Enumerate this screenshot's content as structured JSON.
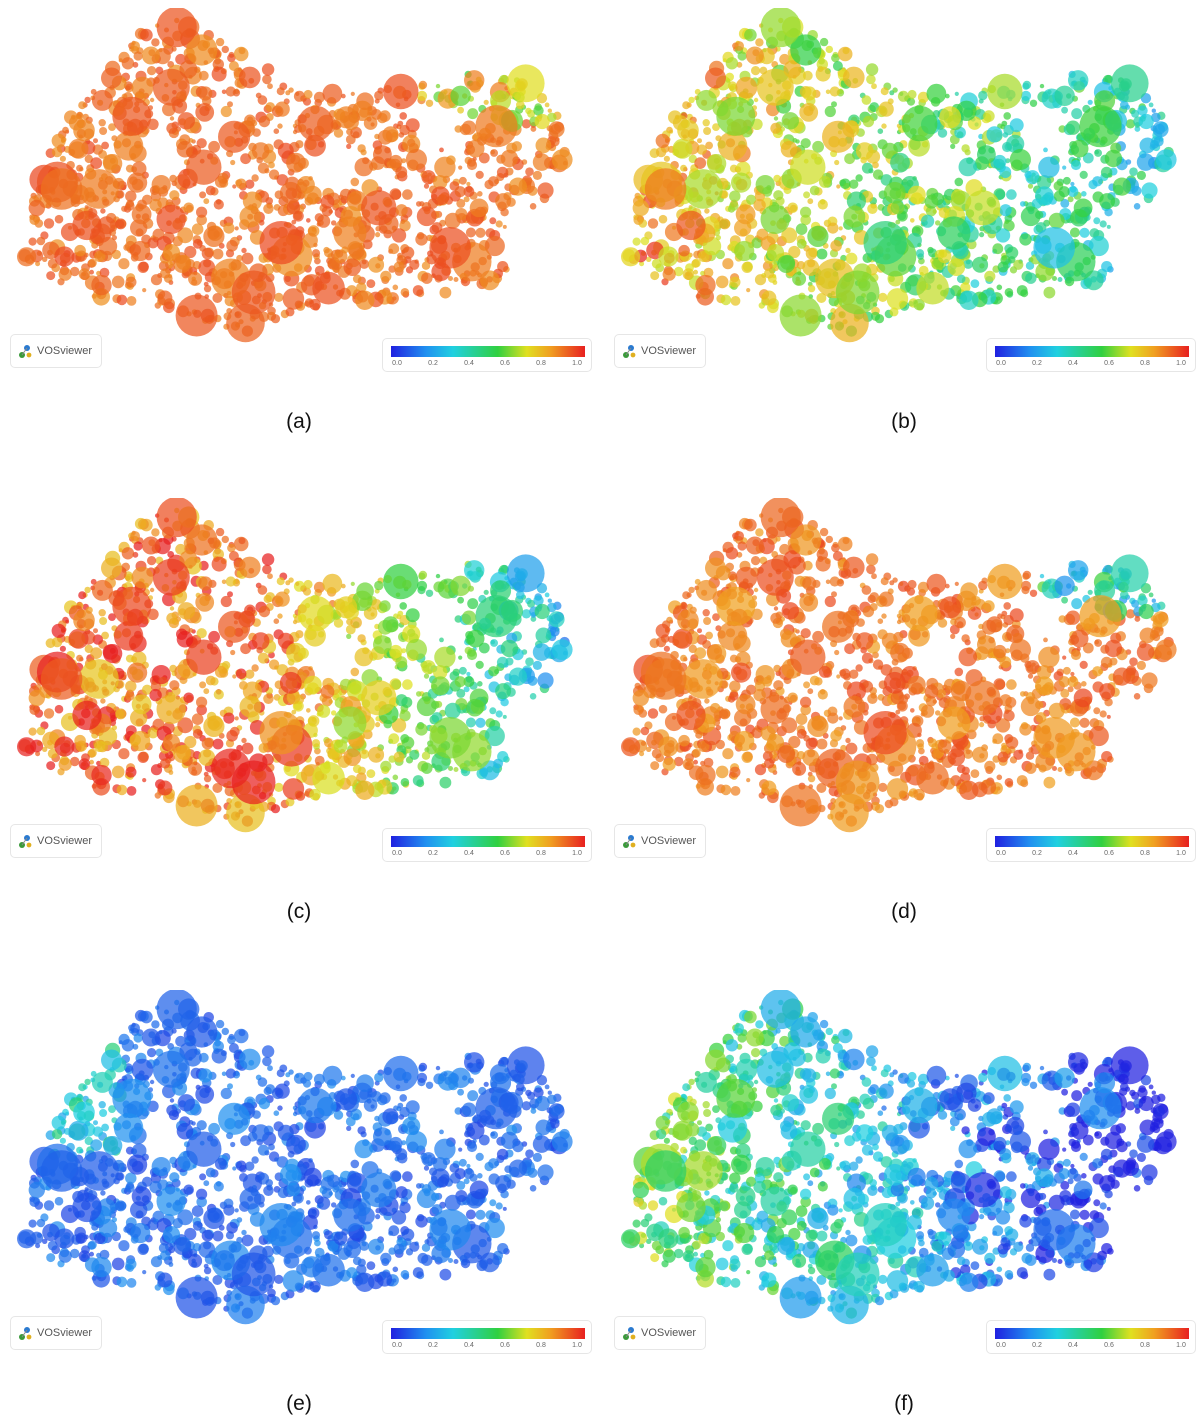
{
  "panels": [
    {
      "caption": "(a)",
      "logo_text": "VOSviewer",
      "colormode": "red"
    },
    {
      "caption": "(b)",
      "logo_text": "VOSviewer",
      "colormode": "mixed-warm"
    },
    {
      "caption": "(c)",
      "logo_text": "VOSviewer",
      "colormode": "orange-blue"
    },
    {
      "caption": "(d)",
      "logo_text": "VOSviewer",
      "colormode": "red-cool-corner"
    },
    {
      "caption": "(e)",
      "logo_text": "VOSviewer",
      "colormode": "blue"
    },
    {
      "caption": "(f)",
      "logo_text": "VOSviewer",
      "colormode": "blue-green-left"
    }
  ],
  "legend": {
    "ticks": [
      "0.0",
      "0.2",
      "0.4",
      "0.6",
      "0.8",
      "1.0"
    ],
    "colors": [
      "#2020e0",
      "#2090f0",
      "#20d0e0",
      "#30d040",
      "#e0e020",
      "#f0a020",
      "#e82020"
    ]
  }
}
